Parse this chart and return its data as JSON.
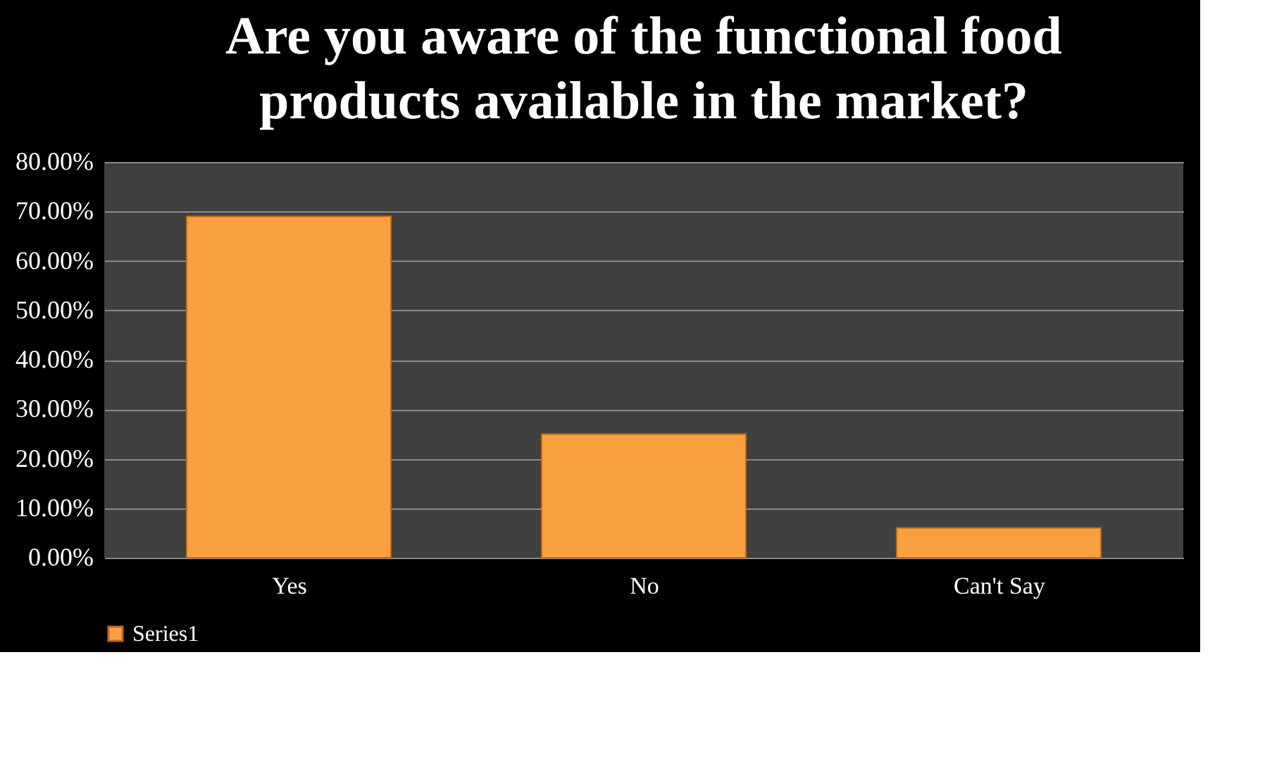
{
  "chart_data": {
    "type": "bar",
    "title": "Are you aware of the functional food products available in the market?",
    "categories": [
      "Yes",
      "No",
      "Can't Say"
    ],
    "series": [
      {
        "name": "Series1",
        "color": "#f9a040",
        "values": [
          69,
          25,
          6
        ]
      }
    ],
    "ylim": [
      0,
      80
    ],
    "yticks": [
      {
        "value": 0,
        "label": "0.00%"
      },
      {
        "value": 10,
        "label": "10.00%"
      },
      {
        "value": 20,
        "label": "20.00%"
      },
      {
        "value": 30,
        "label": "30.00%"
      },
      {
        "value": 40,
        "label": "40.00%"
      },
      {
        "value": 50,
        "label": "50.00%"
      },
      {
        "value": 60,
        "label": "60.00%"
      },
      {
        "value": 70,
        "label": "70.00%"
      },
      {
        "value": 80,
        "label": "80.00%"
      }
    ],
    "grid": "y",
    "legend": "bottom"
  }
}
